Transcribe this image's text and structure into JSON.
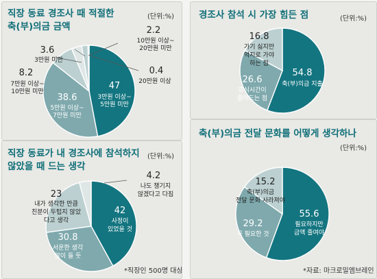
{
  "colors": {
    "teal": "#137580",
    "mid": "#7fa9ad",
    "light": "#bcd0d1",
    "pale": "#dfe7e6",
    "title": "#0f6f78"
  },
  "chart_data": [
    {
      "type": "pie",
      "title": "직장 동료 경조사 때 적절한 축(부)의금 금액",
      "unit": "(단위:%)",
      "slices": [
        {
          "value": 47,
          "label": "3만원 이상~ 5만원 미만"
        },
        {
          "value": 38.6,
          "label": "5만원 이상~ 7만원 미만"
        },
        {
          "value": 8.2,
          "label": "7만원 이상~ 10만원 미만"
        },
        {
          "value": 3.6,
          "label": "3만원 미만"
        },
        {
          "value": 2.2,
          "label": "10만원 이상~ 20만원 미만"
        },
        {
          "value": 0.4,
          "label": "20만원 이상"
        }
      ]
    },
    {
      "type": "pie",
      "title": "직장 동료가 내 경조사에 참석하지 않았을 때 드는 생각",
      "unit": "(단위:%)",
      "slices": [
        {
          "value": 42,
          "label": "사정이 있었을 것"
        },
        {
          "value": 30.8,
          "label": "서운한 생각 많이 들 듯"
        },
        {
          "value": 23,
          "label": "내가 생각한 만큼 친분이 두텁지 않았다고 생각"
        },
        {
          "value": 4.2,
          "label": "나도 챙기지 않겠다고 다짐"
        }
      ]
    },
    {
      "type": "pie",
      "title": "경조사 참석 시 가장 힘든 점",
      "unit": "(단위:%)",
      "slices": [
        {
          "value": 54.8,
          "label": "축(부)의금 지출"
        },
        {
          "value": 26.6,
          "label": "휴식시간이 줄어드는 점"
        },
        {
          "value": 16.8,
          "label": "가기 싫지만 억지로 가야 하는 점"
        }
      ]
    },
    {
      "type": "pie",
      "title": "축(부)의금 전달 문화를 어떻게 생각하나",
      "unit": "(단위:%)",
      "slices": [
        {
          "value": 55.6,
          "label": "필요하지만 금액 줄여야"
        },
        {
          "value": 29.2,
          "label": "꼭 필요한 것"
        },
        {
          "value": 15.2,
          "label": "축(부)의금 전달 문화 사라져야"
        }
      ]
    }
  ],
  "text": {
    "p1_title_1": "직장 동료 경조사 때 적절한",
    "p1_title_2": "축(부)의금 금액",
    "p1_unit": "(단위:%)",
    "p1_v47": "47",
    "p1_l47a": "3만원 이상~",
    "p1_l47b": "5만원 미만",
    "p1_v386": "38.6",
    "p1_l386a": "5만원 이상~",
    "p1_l386b": "7만원 미만",
    "p1_v82": "8.2",
    "p1_l82a": "7만원 이상~",
    "p1_l82b": "10만원 미만",
    "p1_v36": "3.6",
    "p1_l36": "3만원 미만",
    "p1_v22": "2.2",
    "p1_l22a": "10만원 이상~",
    "p1_l22b": "20만원 미만",
    "p1_v04": "0.4",
    "p1_l04": "20만원 이상",
    "p2_title_1": "직장 동료가 내 경조사에 참석하지",
    "p2_title_2": "않았을 때 드는 생각",
    "p2_unit": "(단위:%)",
    "p2_v42": "42",
    "p2_l42a": "사정이",
    "p2_l42b": "있었을 것",
    "p2_v308": "30.8",
    "p2_l308a": "서운한 생각",
    "p2_l308b": "많이 들 듯",
    "p2_v23": "23",
    "p2_l23a": "내가 생각한 만큼",
    "p2_l23b": "친분이 두텁지 않았",
    "p2_l23c": "다고 생각",
    "p2_v42b": "4.2",
    "p2_l42ba": "나도 챙기지",
    "p2_l42bb": "않겠다고 다짐",
    "p2_foot": "*직장인 500명 대상",
    "p3_title": "경조사 참석 시 가장 힘든 점",
    "p3_unit": "(단위:%)",
    "p3_v548": "54.8",
    "p3_l548": "축(부)의금 지출",
    "p3_v266": "26.6",
    "p3_l266a": "휴식시간이",
    "p3_l266b": "줄어드는 점",
    "p3_v168": "16.8",
    "p3_l168a": "가기 싫지만",
    "p3_l168b": "억지로 가야",
    "p3_l168c": "하는 점",
    "p4_title": "축(부)의금 전달 문화를 어떻게 생각하나",
    "p4_unit": "(단위:%)",
    "p4_v556": "55.6",
    "p4_l556a": "필요하지만",
    "p4_l556b": "금액 줄여야",
    "p4_v292": "29.2",
    "p4_l292": "꼭 필요한 것",
    "p4_v152": "15.2",
    "p4_l152a": "축(부)의금",
    "p4_l152b": "전달 문화 사라져야",
    "p4_foot": "*자료: 마크로밀엠브레인"
  }
}
